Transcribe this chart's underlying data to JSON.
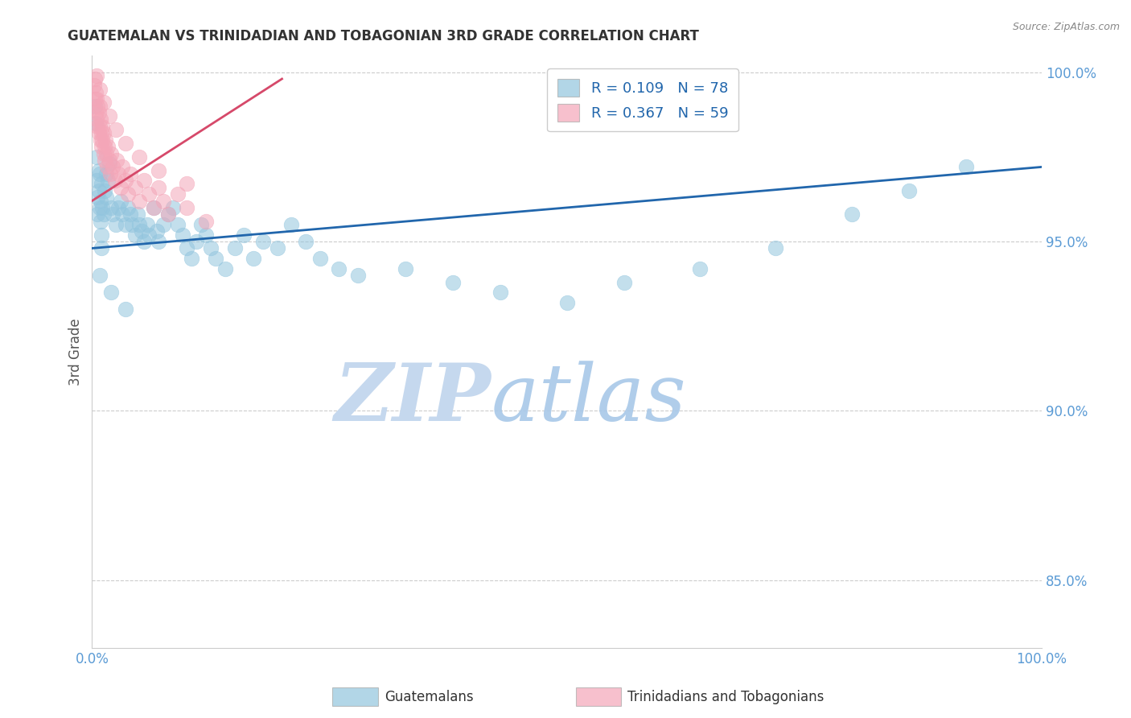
{
  "title": "GUATEMALAN VS TRINIDADIAN AND TOBAGONIAN 3RD GRADE CORRELATION CHART",
  "source": "Source: ZipAtlas.com",
  "ylabel": "3rd Grade",
  "ytick_labels": [
    "85.0%",
    "90.0%",
    "95.0%",
    "100.0%"
  ],
  "ytick_values": [
    0.85,
    0.9,
    0.95,
    1.0
  ],
  "xtick_labels": [
    "0.0%",
    "100.0%"
  ],
  "xtick_values": [
    0.0,
    1.0
  ],
  "legend_blue_r": "R = 0.109",
  "legend_blue_n": "N = 78",
  "legend_pink_r": "R = 0.367",
  "legend_pink_n": "N = 59",
  "bottom_label_blue": "Guatemalans",
  "bottom_label_pink": "Trinidadians and Tobagonians",
  "blue_color": "#92c5de",
  "pink_color": "#f4a6b8",
  "blue_line_color": "#2166ac",
  "pink_line_color": "#d6496a",
  "watermark_zip": "ZIP",
  "watermark_atlas": "atlas",
  "xlim": [
    0.0,
    1.0
  ],
  "ylim": [
    0.83,
    1.005
  ],
  "blue_trend_x": [
    0.0,
    1.0
  ],
  "blue_trend_y": [
    0.948,
    0.972
  ],
  "pink_trend_x": [
    0.0,
    0.2
  ],
  "pink_trend_y": [
    0.962,
    0.998
  ],
  "blue_scatter_x": [
    0.003,
    0.004,
    0.005,
    0.005,
    0.006,
    0.006,
    0.007,
    0.007,
    0.008,
    0.008,
    0.009,
    0.009,
    0.01,
    0.01,
    0.011,
    0.012,
    0.013,
    0.015,
    0.015,
    0.017,
    0.018,
    0.02,
    0.022,
    0.025,
    0.028,
    0.03,
    0.032,
    0.035,
    0.038,
    0.04,
    0.042,
    0.045,
    0.048,
    0.05,
    0.052,
    0.055,
    0.058,
    0.06,
    0.065,
    0.068,
    0.07,
    0.075,
    0.08,
    0.085,
    0.09,
    0.095,
    0.1,
    0.105,
    0.11,
    0.115,
    0.12,
    0.125,
    0.13,
    0.14,
    0.15,
    0.16,
    0.17,
    0.18,
    0.195,
    0.21,
    0.225,
    0.24,
    0.26,
    0.28,
    0.33,
    0.38,
    0.43,
    0.5,
    0.56,
    0.64,
    0.72,
    0.8,
    0.86,
    0.92,
    0.01,
    0.008,
    0.02,
    0.035
  ],
  "blue_scatter_y": [
    0.99,
    0.985,
    0.975,
    0.968,
    0.963,
    0.958,
    0.971,
    0.965,
    0.96,
    0.97,
    0.962,
    0.956,
    0.967,
    0.952,
    0.96,
    0.958,
    0.965,
    0.963,
    0.97,
    0.968,
    0.973,
    0.96,
    0.958,
    0.955,
    0.96,
    0.962,
    0.958,
    0.955,
    0.96,
    0.958,
    0.955,
    0.952,
    0.958,
    0.955,
    0.953,
    0.95,
    0.955,
    0.952,
    0.96,
    0.953,
    0.95,
    0.955,
    0.958,
    0.96,
    0.955,
    0.952,
    0.948,
    0.945,
    0.95,
    0.955,
    0.952,
    0.948,
    0.945,
    0.942,
    0.948,
    0.952,
    0.945,
    0.95,
    0.948,
    0.955,
    0.95,
    0.945,
    0.942,
    0.94,
    0.942,
    0.938,
    0.935,
    0.932,
    0.938,
    0.942,
    0.948,
    0.958,
    0.965,
    0.972,
    0.948,
    0.94,
    0.935,
    0.93
  ],
  "pink_scatter_x": [
    0.002,
    0.003,
    0.003,
    0.004,
    0.004,
    0.005,
    0.005,
    0.006,
    0.006,
    0.007,
    0.007,
    0.008,
    0.008,
    0.009,
    0.009,
    0.01,
    0.01,
    0.011,
    0.011,
    0.012,
    0.012,
    0.013,
    0.013,
    0.014,
    0.015,
    0.016,
    0.017,
    0.018,
    0.019,
    0.02,
    0.022,
    0.024,
    0.026,
    0.028,
    0.03,
    0.032,
    0.035,
    0.038,
    0.04,
    0.045,
    0.05,
    0.055,
    0.06,
    0.065,
    0.07,
    0.075,
    0.08,
    0.09,
    0.1,
    0.12,
    0.005,
    0.008,
    0.012,
    0.018,
    0.025,
    0.035,
    0.05,
    0.07,
    0.1
  ],
  "pink_scatter_y": [
    0.996,
    0.992,
    0.998,
    0.988,
    0.994,
    0.986,
    0.992,
    0.984,
    0.99,
    0.982,
    0.988,
    0.984,
    0.99,
    0.98,
    0.986,
    0.982,
    0.978,
    0.984,
    0.98,
    0.976,
    0.982,
    0.978,
    0.974,
    0.98,
    0.976,
    0.972,
    0.978,
    0.974,
    0.97,
    0.976,
    0.972,
    0.968,
    0.974,
    0.97,
    0.966,
    0.972,
    0.968,
    0.964,
    0.97,
    0.966,
    0.962,
    0.968,
    0.964,
    0.96,
    0.966,
    0.962,
    0.958,
    0.964,
    0.96,
    0.956,
    0.999,
    0.995,
    0.991,
    0.987,
    0.983,
    0.979,
    0.975,
    0.971,
    0.967
  ],
  "background_color": "#ffffff",
  "grid_color": "#cccccc",
  "title_color": "#333333",
  "axis_label_color": "#555555",
  "tick_label_color": "#5b9bd5",
  "watermark_color_zip": "#c5d8ee",
  "watermark_color_atlas": "#c5d8ee",
  "legend_r_color": "#2166ac",
  "legend_n_color": "#333333",
  "fig_width": 14.06,
  "fig_height": 8.92
}
